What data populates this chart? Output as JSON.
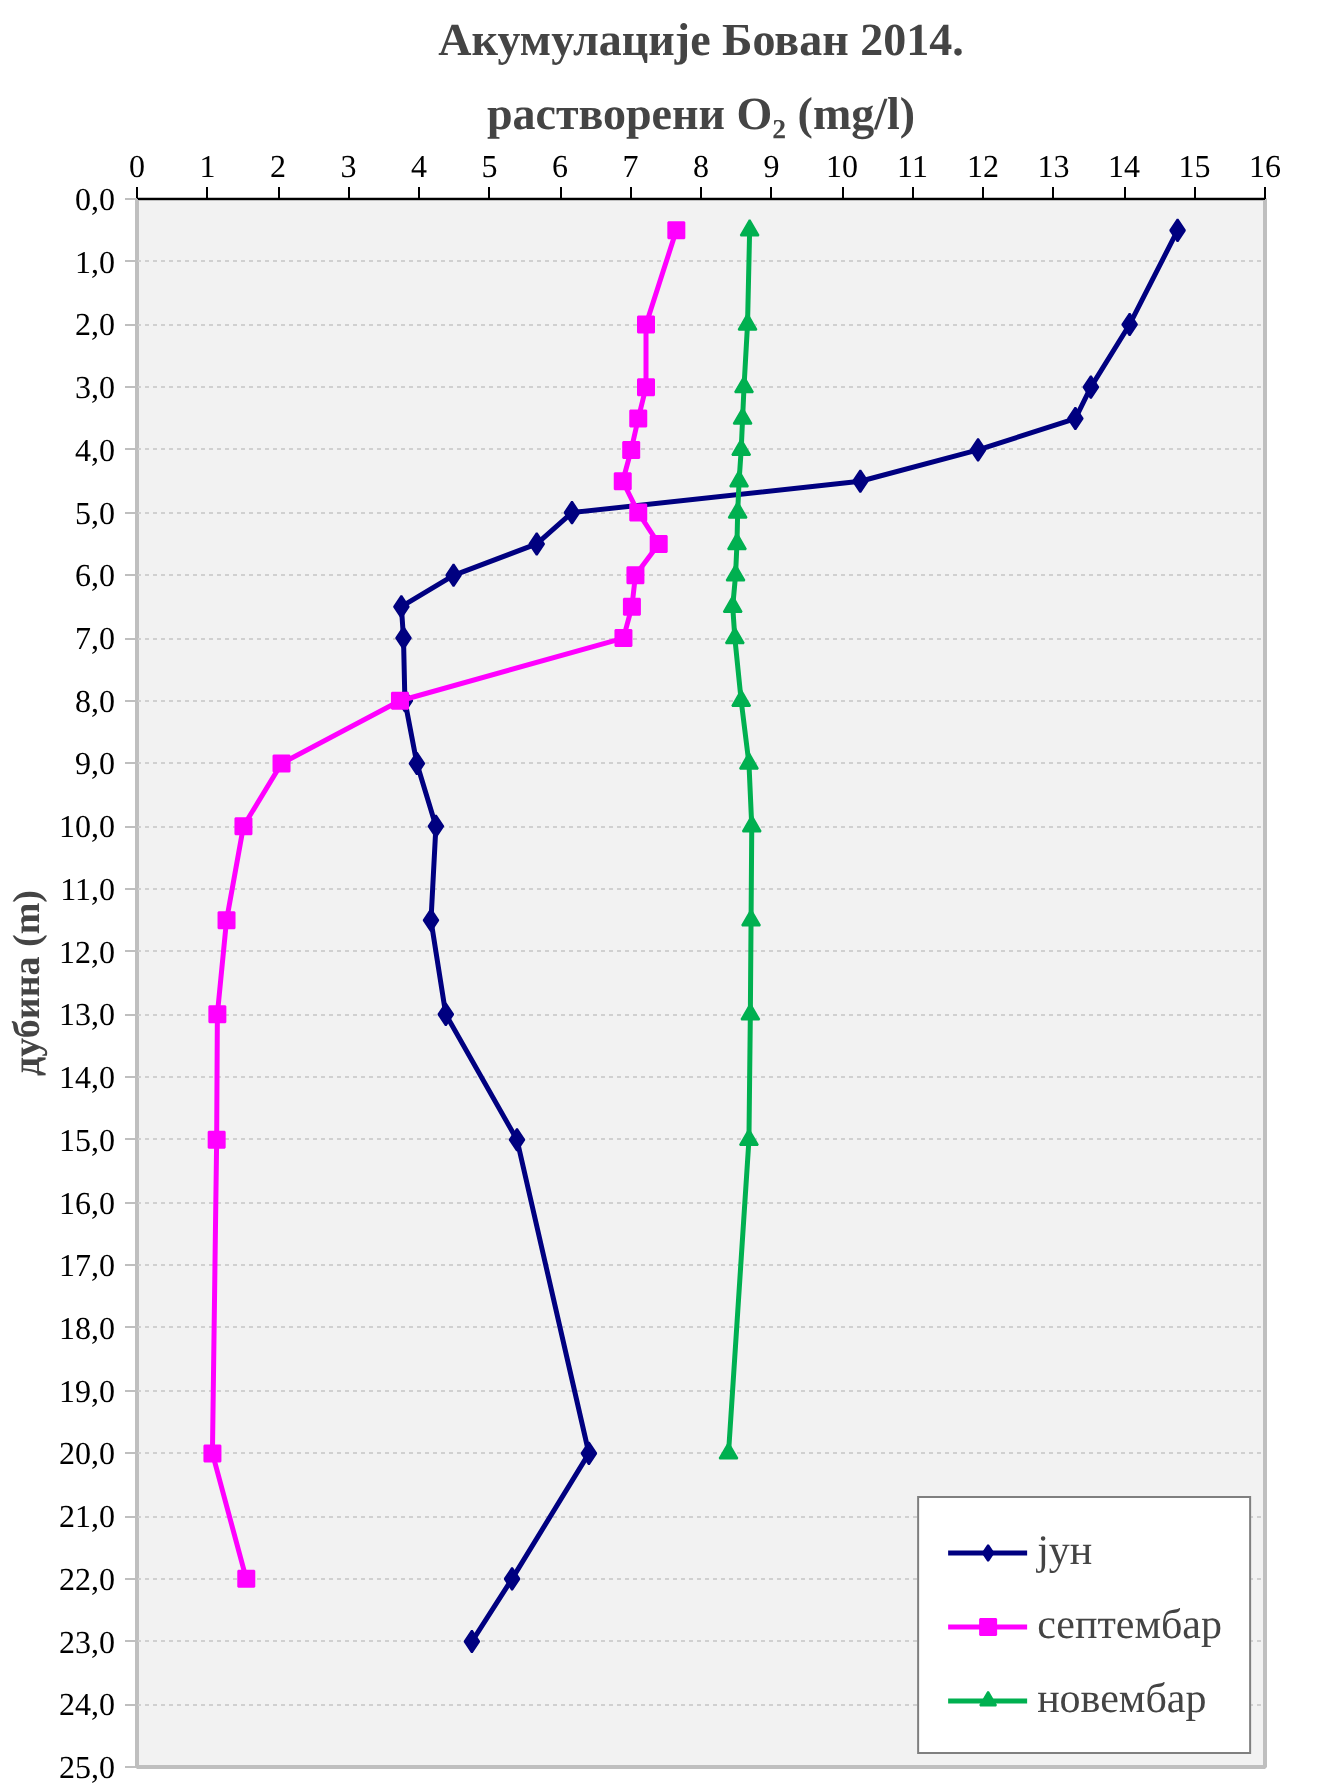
{
  "chart_data": {
    "type": "line",
    "orientation": "horizontal",
    "title": "Акумулације Бован 2014.",
    "subtitle": "растворени O₂ (mg/l)",
    "ylabel": "дубина (m)",
    "xlim": [
      0,
      16
    ],
    "xticks": [
      0,
      1,
      2,
      3,
      4,
      5,
      6,
      7,
      8,
      9,
      10,
      11,
      12,
      13,
      14,
      15,
      16
    ],
    "ylim": [
      25,
      0
    ],
    "yticks": [
      {
        "value": 0,
        "label": "0,0"
      },
      {
        "value": 1,
        "label": "1,0"
      },
      {
        "value": 2,
        "label": "2,0"
      },
      {
        "value": 3,
        "label": "3,0"
      },
      {
        "value": 4,
        "label": "4,0"
      },
      {
        "value": 5,
        "label": "5,0"
      },
      {
        "value": 6,
        "label": "6,0"
      },
      {
        "value": 7,
        "label": "7,0"
      },
      {
        "value": 8,
        "label": "8,0"
      },
      {
        "value": 9,
        "label": "9,0"
      },
      {
        "value": 10,
        "label": "10,0"
      },
      {
        "value": 11,
        "label": "11,0"
      },
      {
        "value": 12,
        "label": "12,0"
      },
      {
        "value": 13,
        "label": "13,0"
      },
      {
        "value": 14,
        "label": "14,0"
      },
      {
        "value": 15,
        "label": "15,0"
      },
      {
        "value": 16,
        "label": "16,0"
      },
      {
        "value": 17,
        "label": "17,0"
      },
      {
        "value": 18,
        "label": "18,0"
      },
      {
        "value": 19,
        "label": "19,0"
      },
      {
        "value": 20,
        "label": "20,0"
      },
      {
        "value": 21,
        "label": "21,0"
      },
      {
        "value": 22,
        "label": "22,0"
      },
      {
        "value": 23,
        "label": "23,0"
      },
      {
        "value": 24,
        "label": "24,0"
      },
      {
        "value": 25,
        "label": "25,0"
      }
    ],
    "grid": "y",
    "legend": "bottom right",
    "line_style": "solid",
    "series": [
      {
        "name": "јун",
        "color": "#000080",
        "marker": "diamond",
        "x": [
          0.5,
          2,
          3,
          3.5,
          4,
          4.5,
          5,
          5.5,
          6,
          6.5,
          7,
          8,
          9,
          10,
          11.5,
          13,
          15,
          20,
          22,
          23
        ],
        "values": [
          14.76,
          14.08,
          13.53,
          13.31,
          11.93,
          10.26,
          6.17,
          5.67,
          4.49,
          3.75,
          3.78,
          3.8,
          3.97,
          4.24,
          4.17,
          4.38,
          5.39,
          6.41,
          5.32,
          4.75
        ]
      },
      {
        "name": "септембар",
        "color": "#ff00ff",
        "marker": "square",
        "x": [
          0.5,
          2,
          3,
          3.5,
          4,
          4.5,
          5,
          5.5,
          6,
          6.5,
          7,
          8,
          9,
          10,
          11.5,
          13,
          15,
          20,
          22
        ],
        "values": [
          7.65,
          7.22,
          7.22,
          7.11,
          7.01,
          6.89,
          7.11,
          7.4,
          7.07,
          7.02,
          6.9,
          3.73,
          2.05,
          1.51,
          1.27,
          1.14,
          1.13,
          1.07,
          1.55
        ]
      },
      {
        "name": "новембар",
        "color": "#00b050",
        "marker": "triangle",
        "x": [
          0.5,
          2,
          3,
          3.5,
          4,
          4.5,
          5,
          5.5,
          6,
          6.5,
          7,
          8,
          9,
          10,
          11.5,
          13,
          15,
          20
        ],
        "values": [
          8.69,
          8.66,
          8.61,
          8.59,
          8.57,
          8.54,
          8.52,
          8.51,
          8.49,
          8.45,
          8.48,
          8.57,
          8.68,
          8.72,
          8.71,
          8.7,
          8.68,
          8.39
        ]
      }
    ]
  }
}
